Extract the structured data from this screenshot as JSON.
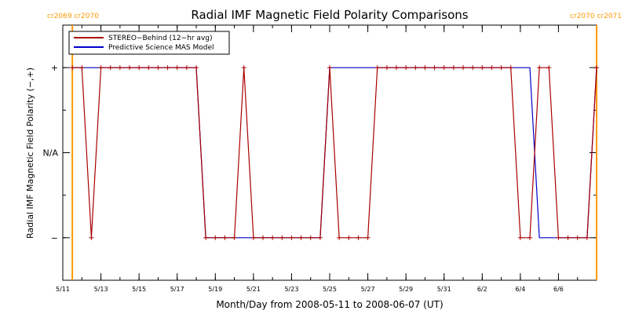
{
  "chart_data": {
    "type": "line",
    "title": "Radial IMF Magnetic Field Polarity Comparisons",
    "xlabel": "Month/Day from 2008-05-11 to 2008-06-07 (UT)",
    "ylabel": "Radial IMF Magnetic Field Polarity (−,+)",
    "x_start": "2008-05-11",
    "x_end": "2008-06-07",
    "xlim": [
      "2008-05-11",
      "2008-06-07"
    ],
    "ylim": [
      -1.5,
      1.5
    ],
    "x_ticks": [
      {
        "date": "2008-05-11",
        "label": "5/11"
      },
      {
        "date": "2008-05-13",
        "label": "5/13"
      },
      {
        "date": "2008-05-15",
        "label": "5/15"
      },
      {
        "date": "2008-05-17",
        "label": "5/17"
      },
      {
        "date": "2008-05-19",
        "label": "5/19"
      },
      {
        "date": "2008-05-21",
        "label": "5/21"
      },
      {
        "date": "2008-05-23",
        "label": "5/23"
      },
      {
        "date": "2008-05-25",
        "label": "5/25"
      },
      {
        "date": "2008-05-27",
        "label": "5/27"
      },
      {
        "date": "2008-05-29",
        "label": "5/29"
      },
      {
        "date": "2008-05-31",
        "label": "5/31"
      },
      {
        "date": "2008-06-02",
        "label": "6/2"
      },
      {
        "date": "2008-06-04",
        "label": "6/4"
      },
      {
        "date": "2008-06-06",
        "label": "6/6"
      }
    ],
    "y_ticks": [
      {
        "value": 1,
        "label": "+"
      },
      {
        "value": 0,
        "label": "N/A"
      },
      {
        "value": -1,
        "label": "−"
      }
    ],
    "legend": {
      "position": "top-left"
    },
    "series": [
      {
        "name": "STEREO−Behind (12−hr avg)",
        "color": "#aa0000",
        "marker": "plus",
        "points": [
          [
            "2008-05-11 12:00",
            1
          ],
          [
            "2008-05-12 00:00",
            1
          ],
          [
            "2008-05-12 12:00",
            -1
          ],
          [
            "2008-05-13 00:00",
            1
          ],
          [
            "2008-05-13 12:00",
            1
          ],
          [
            "2008-05-14 00:00",
            1
          ],
          [
            "2008-05-14 12:00",
            1
          ],
          [
            "2008-05-15 00:00",
            1
          ],
          [
            "2008-05-15 12:00",
            1
          ],
          [
            "2008-05-16 00:00",
            1
          ],
          [
            "2008-05-16 12:00",
            1
          ],
          [
            "2008-05-17 00:00",
            1
          ],
          [
            "2008-05-17 12:00",
            1
          ],
          [
            "2008-05-18 00:00",
            1
          ],
          [
            "2008-05-18 12:00",
            -1
          ],
          [
            "2008-05-19 00:00",
            -1
          ],
          [
            "2008-05-19 12:00",
            -1
          ],
          [
            "2008-05-20 00:00",
            -1
          ],
          [
            "2008-05-20 12:00",
            1
          ],
          [
            "2008-05-21 00:00",
            -1
          ],
          [
            "2008-05-21 12:00",
            -1
          ],
          [
            "2008-05-22 00:00",
            -1
          ],
          [
            "2008-05-22 12:00",
            -1
          ],
          [
            "2008-05-23 00:00",
            -1
          ],
          [
            "2008-05-23 12:00",
            -1
          ],
          [
            "2008-05-24 00:00",
            -1
          ],
          [
            "2008-05-24 12:00",
            -1
          ],
          [
            "2008-05-25 00:00",
            1
          ],
          [
            "2008-05-25 12:00",
            -1
          ],
          [
            "2008-05-26 00:00",
            -1
          ],
          [
            "2008-05-26 12:00",
            -1
          ],
          [
            "2008-05-27 00:00",
            -1
          ],
          [
            "2008-05-27 12:00",
            1
          ],
          [
            "2008-05-28 00:00",
            1
          ],
          [
            "2008-05-28 12:00",
            1
          ],
          [
            "2008-05-29 00:00",
            1
          ],
          [
            "2008-05-29 12:00",
            1
          ],
          [
            "2008-05-30 00:00",
            1
          ],
          [
            "2008-05-30 12:00",
            1
          ],
          [
            "2008-05-31 00:00",
            1
          ],
          [
            "2008-05-31 12:00",
            1
          ],
          [
            "2008-06-01 00:00",
            1
          ],
          [
            "2008-06-01 12:00",
            1
          ],
          [
            "2008-06-02 00:00",
            1
          ],
          [
            "2008-06-02 12:00",
            1
          ],
          [
            "2008-06-03 00:00",
            1
          ],
          [
            "2008-06-03 12:00",
            1
          ],
          [
            "2008-06-04 00:00",
            -1
          ],
          [
            "2008-06-04 12:00",
            -1
          ],
          [
            "2008-06-05 00:00",
            1
          ],
          [
            "2008-06-05 12:00",
            1
          ],
          [
            "2008-06-06 00:00",
            -1
          ],
          [
            "2008-06-06 12:00",
            -1
          ],
          [
            "2008-06-07 00:00",
            -1
          ],
          [
            "2008-06-07 12:00",
            -1
          ],
          [
            "2008-06-08 00:00",
            1
          ]
        ]
      },
      {
        "name": "Predictive Science MAS Model",
        "color": "#0000cc",
        "marker": "none",
        "points": [
          [
            "2008-05-11 12:00",
            1
          ],
          [
            "2008-05-18 00:00",
            1
          ],
          [
            "2008-05-18 12:00",
            -1
          ],
          [
            "2008-05-24 12:00",
            -1
          ],
          [
            "2008-05-25 00:00",
            1
          ],
          [
            "2008-06-04 12:00",
            1
          ],
          [
            "2008-06-05 00:00",
            -1
          ],
          [
            "2008-06-07 12:00",
            -1
          ],
          [
            "2008-06-08 00:00",
            1
          ]
        ]
      }
    ],
    "carrington_markers": [
      {
        "date": "2008-05-11 12:00",
        "label": "cr2069 cr2070",
        "color": "#ff9900"
      },
      {
        "date": "2008-06-08 00:00",
        "label": "cr2070 cr2071",
        "color": "#ff9900"
      }
    ]
  }
}
